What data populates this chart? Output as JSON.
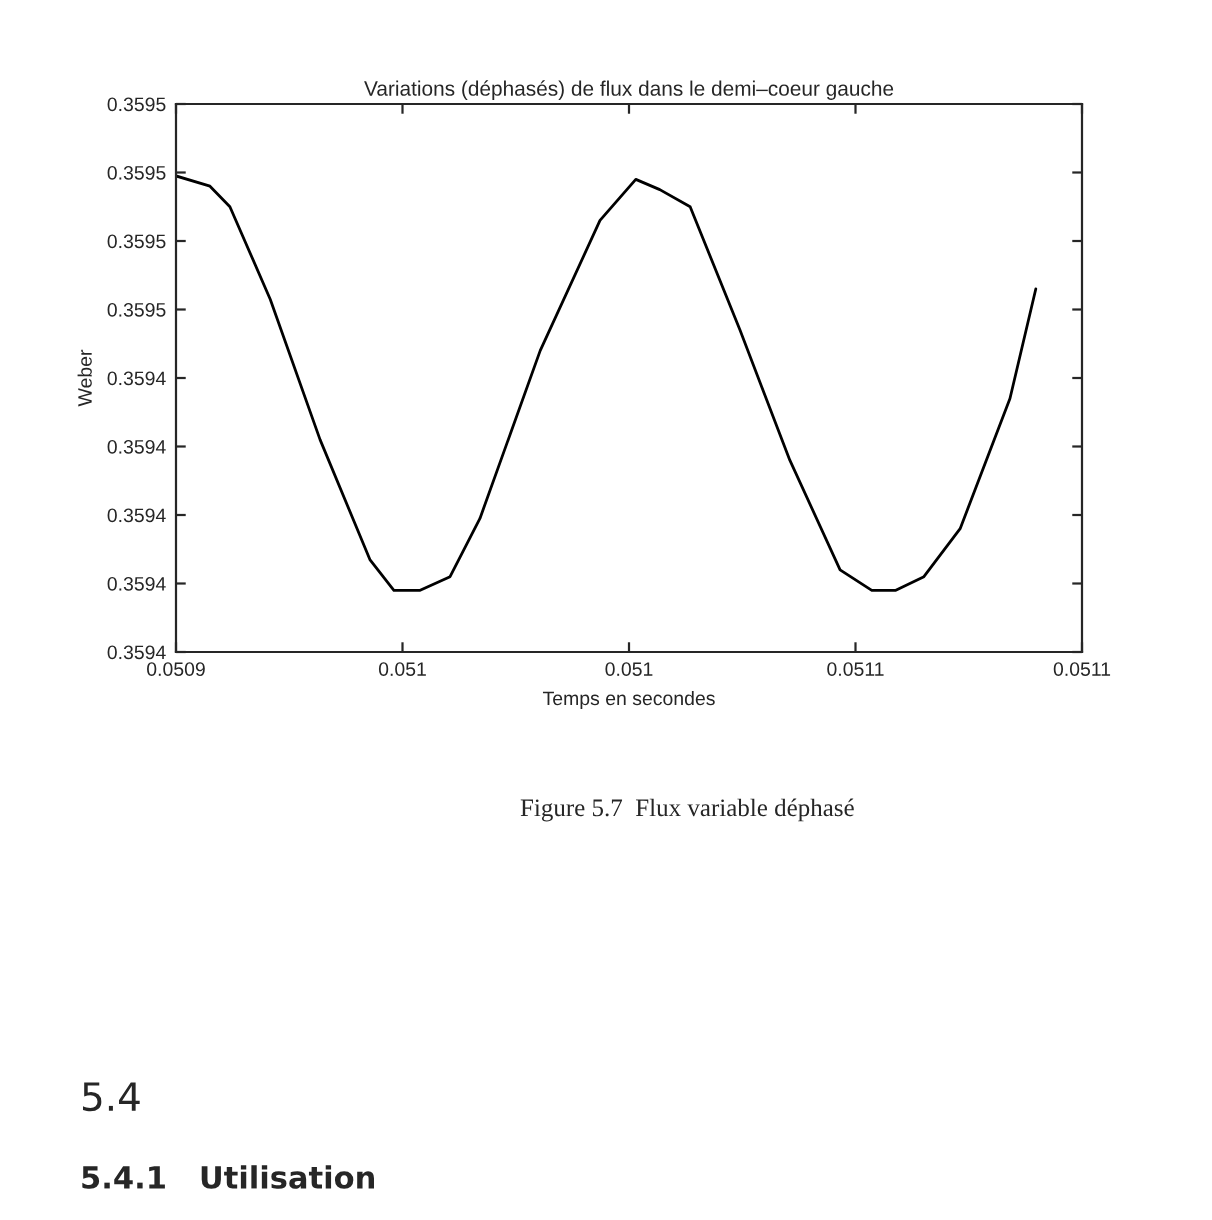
{
  "chart_data": {
    "type": "line",
    "title": "Variations (déphasés) de flux dans le demi–coeur gauche",
    "xlabel": "Temps en secondes",
    "ylabel": "Weber",
    "annotations": [
      "Figure 5.7  Flux variable déphasé",
      "5.4",
      "5.4.1   Utilisation"
    ],
    "x": [
      0.0509,
      0.0509075,
      0.0509119,
      0.0509208,
      0.0509318,
      0.0509428,
      0.0509481,
      0.0509539,
      0.0509605,
      0.0509671,
      0.0509804,
      0.0509936,
      0.0510015,
      0.0510068,
      0.0510135,
      0.0510245,
      0.0510355,
      0.0510466,
      0.0510536,
      0.0510589,
      0.0510651,
      0.0510731,
      0.0510841,
      0.0510898
    ],
    "series": [
      {
        "color": "#000000",
        "values": [
          0.359499,
          0.359496,
          0.35949,
          0.359463,
          0.359422,
          0.359387,
          0.359378,
          0.359378,
          0.359382,
          0.359399,
          0.359448,
          0.359486,
          0.359498,
          0.359495,
          0.35949,
          0.359454,
          0.359416,
          0.359384,
          0.359378,
          0.359378,
          0.359382,
          0.359396,
          0.359434,
          0.359466
        ]
      }
    ],
    "xlim": [
      0.0509,
      0.0511
    ],
    "xticks": [
      {
        "value": 0.0509,
        "label": "0.0509"
      },
      {
        "value": 0.05095,
        "label": "0.051"
      },
      {
        "value": 0.051,
        "label": "0.051"
      },
      {
        "value": 0.05105,
        "label": "0.0511"
      },
      {
        "value": 0.0511,
        "label": "0.0511"
      }
    ],
    "ylim": [
      0.35936,
      0.35952
    ],
    "yticks": [
      {
        "value": 0.35936,
        "label": "0.3594"
      },
      {
        "value": 0.35938,
        "label": "0.3594"
      },
      {
        "value": 0.3594,
        "label": "0.3594"
      },
      {
        "value": 0.35942,
        "label": "0.3594"
      },
      {
        "value": 0.35944,
        "label": "0.3594"
      },
      {
        "value": 0.35946,
        "label": "0.3595"
      },
      {
        "value": 0.35948,
        "label": "0.3595"
      },
      {
        "value": 0.3595,
        "label": "0.3595"
      },
      {
        "value": 0.35952,
        "label": "0.3595"
      }
    ],
    "grid": false,
    "legend": false,
    "marker": "none",
    "line_style": "solid"
  }
}
